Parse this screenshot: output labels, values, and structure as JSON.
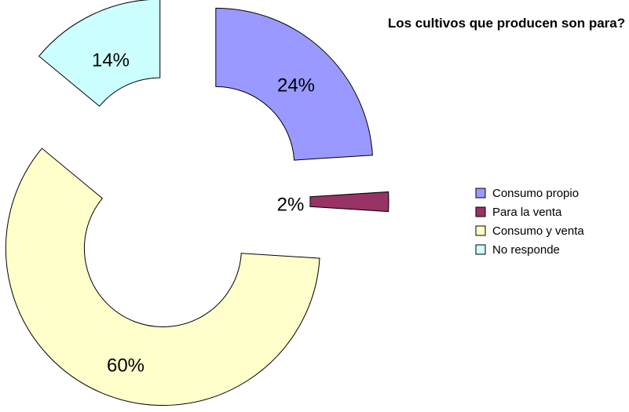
{
  "chart_data": {
    "type": "doughnut",
    "title": "Los cultivos que producen son para?",
    "categories": [
      "Consumo propio",
      "Para la venta",
      "Consumo y venta",
      "No responde"
    ],
    "values": [
      24,
      2,
      60,
      14
    ],
    "value_labels": [
      "24%",
      "2%",
      "60%",
      "14%"
    ],
    "colors": [
      "#9999ff",
      "#993366",
      "#ffffcc",
      "#ccffff"
    ],
    "legend": "right"
  }
}
